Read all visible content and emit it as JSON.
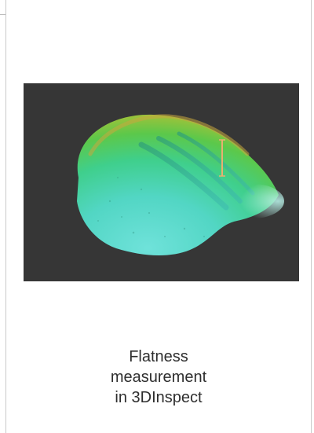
{
  "caption": {
    "lines": [
      "Flatness",
      "measurement",
      "in 3DInspect"
    ]
  },
  "figure": {
    "image_name": "flatness-scan-3d-surface",
    "background_color": "#363636",
    "colormap_colors": [
      "#55d8d0",
      "#3fcf8c",
      "#7fc23c",
      "#d7a43a"
    ],
    "marker_color": "#e8b070"
  }
}
